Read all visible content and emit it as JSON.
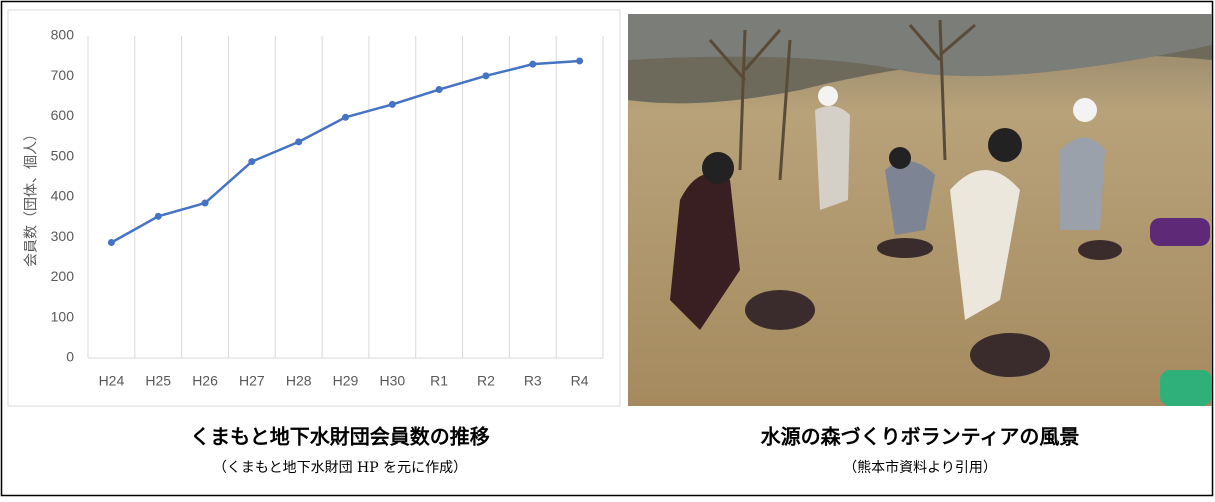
{
  "chart_data": {
    "type": "line",
    "y_label": "会員数（団体、個人）",
    "categories": [
      "H24",
      "H25",
      "H26",
      "H27",
      "H28",
      "H29",
      "H30",
      "R1",
      "R2",
      "R3",
      "R4"
    ],
    "series": [
      {
        "color": "#4472c4",
        "values": [
          287,
          352,
          385,
          488,
          537,
          598,
          630,
          667,
          701,
          730,
          738
        ]
      }
    ],
    "ylim": [
      0,
      800
    ],
    "yticks": [
      0,
      100,
      200,
      300,
      400,
      500,
      600,
      700,
      800
    ],
    "grid": "x"
  },
  "captions": [
    {
      "title": "くまもと地下水財団会員数の推移",
      "source": "（くまもと地下水財団 HP を元に作成）"
    },
    {
      "title": "水源の森づくりボランティアの風景",
      "source": "（熊本市資料より引用）"
    }
  ]
}
